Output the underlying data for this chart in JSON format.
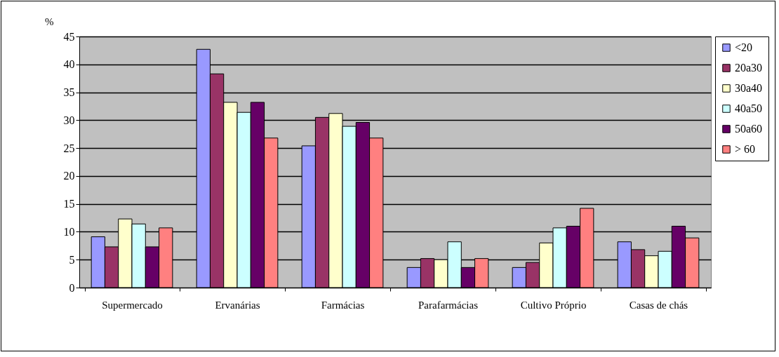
{
  "chart_data": {
    "type": "bar",
    "ylabel": "%",
    "categories": [
      "Supermercado",
      "Ervanárias",
      "Farmácias",
      "Parafarmácias",
      "Cultivo Próprio",
      "Casas de chás"
    ],
    "series": [
      {
        "name": "<20",
        "color": "#9999ff",
        "values": [
          9.1,
          42.7,
          25.4,
          3.6,
          3.6,
          8.2
        ]
      },
      {
        "name": "20a30",
        "color": "#993366",
        "values": [
          7.3,
          38.3,
          30.5,
          5.2,
          4.5,
          6.8
        ]
      },
      {
        "name": "30a40",
        "color": "#ffffcc",
        "values": [
          12.3,
          33.2,
          31.2,
          5.0,
          8.0,
          5.7
        ]
      },
      {
        "name": "40a50",
        "color": "#ccffff",
        "values": [
          11.4,
          31.4,
          28.9,
          8.2,
          10.7,
          6.5
        ]
      },
      {
        "name": "50a60",
        "color": "#660066",
        "values": [
          7.3,
          33.2,
          29.6,
          3.6,
          11.0,
          11.0
        ]
      },
      {
        "name": "> 60",
        "color": "#ff8080",
        "values": [
          10.7,
          26.8,
          26.8,
          5.2,
          14.2,
          8.9
        ]
      }
    ],
    "ylim": [
      0,
      45
    ],
    "yticks": [
      0,
      5,
      10,
      15,
      20,
      25,
      30,
      35,
      40,
      45
    ],
    "grid": "y",
    "legend": "right"
  }
}
